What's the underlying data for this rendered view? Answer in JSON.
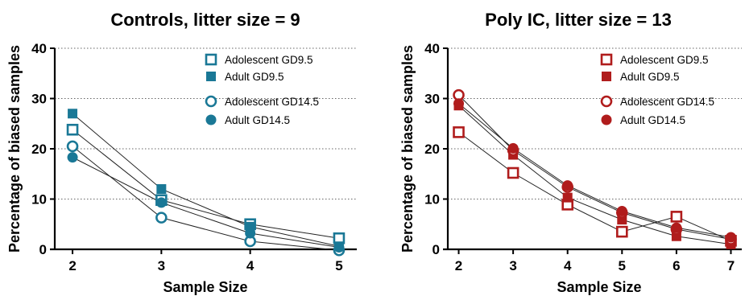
{
  "chart_data": [
    {
      "type": "line",
      "title": "Controls, litter size = 9",
      "xlabel": "Sample Size",
      "ylabel": "Percentage of biased samples",
      "x": [
        2,
        3,
        4,
        5
      ],
      "xlim": [
        1.8,
        5.2
      ],
      "ylim": [
        0,
        40
      ],
      "yticks": [
        0,
        10,
        20,
        30,
        40
      ],
      "grid": "horizontal dotted",
      "legend": "top-right",
      "color": "#1a7896",
      "series": [
        {
          "name": "Adolescent GD9.5",
          "marker": "square-open",
          "values": [
            23.8,
            9.8,
            5.0,
            2.2
          ]
        },
        {
          "name": "Adult GD9.5",
          "marker": "square-filled",
          "values": [
            27.0,
            12.0,
            4.5,
            0.6
          ]
        },
        {
          "name": "Adolescent GD14.5",
          "marker": "circle-open",
          "values": [
            20.5,
            6.3,
            1.6,
            -0.2
          ]
        },
        {
          "name": "Adult GD14.5",
          "marker": "circle-filled",
          "values": [
            18.3,
            9.3,
            3.2,
            0.4
          ]
        }
      ]
    },
    {
      "type": "line",
      "title": "Poly IC, litter size = 13",
      "xlabel": "Sample Size",
      "ylabel": "Percentage of biased samples",
      "x": [
        2,
        3,
        4,
        5,
        6,
        7
      ],
      "xlim": [
        1.8,
        7.2
      ],
      "ylim": [
        0,
        40
      ],
      "yticks": [
        0,
        10,
        20,
        30,
        40
      ],
      "grid": "horizontal dotted",
      "legend": "top-right",
      "color": "#b01c1c",
      "series": [
        {
          "name": "Adolescent GD9.5",
          "marker": "square-open",
          "values": [
            23.3,
            15.2,
            8.9,
            3.5,
            6.5,
            1.7
          ]
        },
        {
          "name": "Adult GD9.5",
          "marker": "square-filled",
          "values": [
            28.6,
            18.8,
            10.3,
            5.9,
            2.6,
            1.0
          ]
        },
        {
          "name": "Adolescent GD14.5",
          "marker": "circle-open",
          "values": [
            30.7,
            19.7,
            12.4,
            7.3,
            4.0,
            2.0
          ]
        },
        {
          "name": "Adult GD14.5",
          "marker": "circle-filled",
          "values": [
            29.0,
            20.1,
            12.7,
            7.6,
            4.3,
            2.4
          ]
        }
      ]
    }
  ]
}
